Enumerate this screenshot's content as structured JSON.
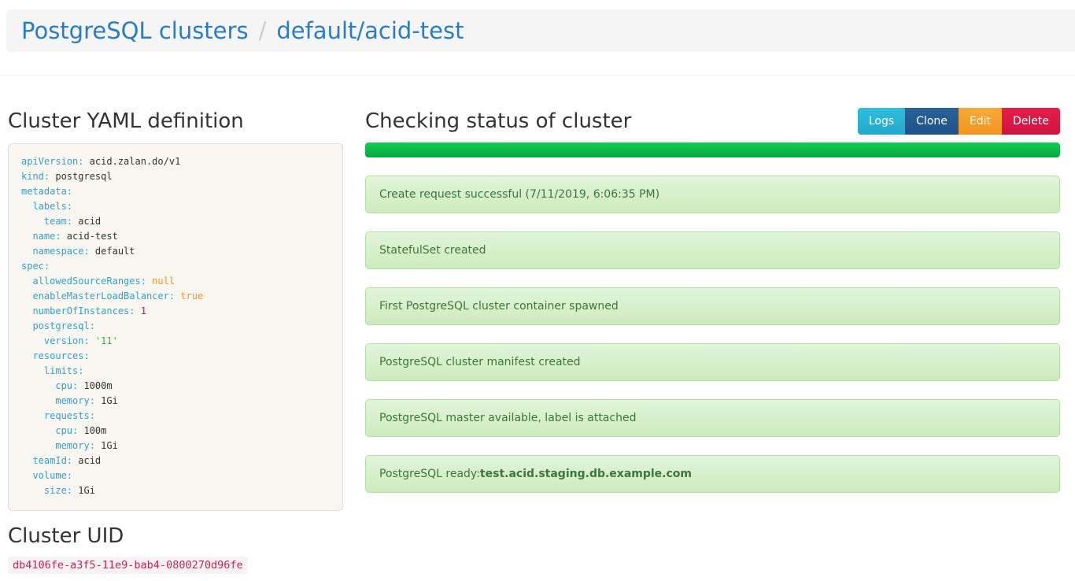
{
  "breadcrumb": {
    "root": "PostgreSQL clusters",
    "separator": "/",
    "current": "default/acid-test"
  },
  "left": {
    "yaml_title": "Cluster YAML definition",
    "uid_title": "Cluster UID",
    "uid_value": "db4106fe-a3f5-11e9-bab4-0800270d96fe",
    "yaml_lines": [
      [
        [
          "k",
          "apiVersion:"
        ],
        [
          "p",
          " acid.zalan.do/v1"
        ]
      ],
      [
        [
          "k",
          "kind:"
        ],
        [
          "p",
          " postgresql"
        ]
      ],
      [
        [
          "k",
          "metadata:"
        ]
      ],
      [
        [
          "k",
          "  labels:"
        ]
      ],
      [
        [
          "k",
          "    team:"
        ],
        [
          "p",
          " acid"
        ]
      ],
      [
        [
          "k",
          "  name:"
        ],
        [
          "p",
          " acid-test"
        ]
      ],
      [
        [
          "k",
          "  namespace:"
        ],
        [
          "p",
          " default"
        ]
      ],
      [
        [
          "k",
          "spec:"
        ]
      ],
      [
        [
          "k",
          "  allowedSourceRanges:"
        ],
        [
          "a",
          " null"
        ]
      ],
      [
        [
          "k",
          "  enableMasterLoadBalancer:"
        ],
        [
          "a",
          " true"
        ]
      ],
      [
        [
          "k",
          "  numberOfInstances:"
        ],
        [
          "n",
          " 1"
        ]
      ],
      [
        [
          "k",
          "  postgresql:"
        ]
      ],
      [
        [
          "k",
          "    version:"
        ],
        [
          "s",
          " '11'"
        ]
      ],
      [
        [
          "k",
          "  resources:"
        ]
      ],
      [
        [
          "k",
          "    limits:"
        ]
      ],
      [
        [
          "k",
          "      cpu:"
        ],
        [
          "p",
          " 1000m"
        ]
      ],
      [
        [
          "k",
          "      memory:"
        ],
        [
          "p",
          " 1Gi"
        ]
      ],
      [
        [
          "k",
          "    requests:"
        ]
      ],
      [
        [
          "k",
          "      cpu:"
        ],
        [
          "p",
          " 100m"
        ]
      ],
      [
        [
          "k",
          "      memory:"
        ],
        [
          "p",
          " 1Gi"
        ]
      ],
      [
        [
          "k",
          "  teamId:"
        ],
        [
          "p",
          " acid"
        ]
      ],
      [
        [
          "k",
          "  volume:"
        ]
      ],
      [
        [
          "k",
          "    size:"
        ],
        [
          "p",
          " 1Gi"
        ]
      ]
    ]
  },
  "right": {
    "title": "Checking status of cluster",
    "buttons": [
      {
        "label": "Logs",
        "gradient": [
          "#2fbedd",
          "#22a9cb"
        ]
      },
      {
        "label": "Clone",
        "gradient": [
          "#28639b",
          "#1e5288"
        ]
      },
      {
        "label": "Edit",
        "gradient": [
          "#f8a93a",
          "#f2951f"
        ]
      },
      {
        "label": "Delete",
        "gradient": [
          "#e41e49",
          "#cf1440"
        ]
      }
    ],
    "progress": {
      "value_percent": 100
    },
    "messages": [
      {
        "text": "Create request successful (7/11/2019, 6:06:35 PM)"
      },
      {
        "text": "StatefulSet created"
      },
      {
        "text": "First PostgreSQL cluster container spawned"
      },
      {
        "text": "PostgreSQL cluster manifest created"
      },
      {
        "text": "PostgreSQL master available, label is attached"
      },
      {
        "text": "PostgreSQL ready: ",
        "bold": "test.acid.staging.db.example.com"
      }
    ]
  },
  "colors": {
    "link": "#2a7cc5",
    "heading": "#333333",
    "topbar_bg": "#f5f5f5",
    "yaml_bg": "#f8f6f1",
    "yaml_key": "#3a9fca",
    "yaml_text": "#333333",
    "yaml_atom": "#f0932e",
    "yaml_number": "#9a2d64",
    "yaml_string": "#3cb33c",
    "alert_bg_top": "#e2f5da",
    "alert_bg_bottom": "#cdeabd",
    "alert_border": "#b7dda6",
    "alert_text": "#3c763d",
    "progress_top": "#15cd53",
    "progress_bottom": "#03a83e",
    "code_text": "#c7254e",
    "code_bg": "#f9f2f4"
  }
}
